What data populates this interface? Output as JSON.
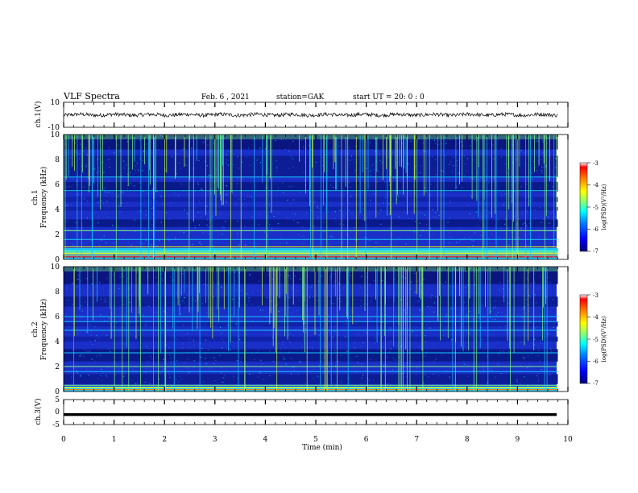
{
  "header": {
    "title": "VLF Spectra",
    "date": "Feb. 6 , 2021",
    "station": "station=GAK",
    "start": "start UT = 20: 0 : 0"
  },
  "chart_data": [
    {
      "type": "line",
      "panel": "ch1-waveform",
      "ylabel": "ch.1(V)",
      "ylim": [
        -10,
        10
      ],
      "yticks": [
        "10",
        "-10"
      ],
      "xlim": [
        0,
        10
      ],
      "approx_level": 0,
      "approx_noise_amplitude": 1.5
    },
    {
      "type": "heatmap",
      "panel": "ch1-spectrogram",
      "ylabel_line1": "ch.1",
      "ylabel_line2": "Frequency (kHz)",
      "ylim": [
        0,
        10
      ],
      "yticks": [
        "0",
        "2",
        "4",
        "6",
        "8",
        "10"
      ],
      "xlim": [
        0,
        9.85
      ],
      "colorbar": {
        "label": "log(PSD)(V²/Hz)",
        "min": -7,
        "max": -3,
        "ticks": [
          "-3",
          "-4",
          "-5",
          "-6",
          "-7"
        ]
      }
    },
    {
      "type": "heatmap",
      "panel": "ch2-spectrogram",
      "ylabel_line1": "ch.2",
      "ylabel_line2": "Frequency (kHz)",
      "ylim": [
        0,
        10
      ],
      "yticks": [
        "0",
        "2",
        "4",
        "6",
        "8",
        "10"
      ],
      "xlim": [
        0,
        9.85
      ],
      "colorbar": {
        "label": "log(PSD)(V²/Hz)",
        "min": -7,
        "max": -3,
        "ticks": [
          "-3",
          "-4",
          "-5",
          "-6",
          "-7"
        ]
      }
    },
    {
      "type": "line",
      "panel": "ch3-waveform",
      "ylabel": "ch.3(V)",
      "ylim": [
        -5,
        5
      ],
      "yticks": [
        "5",
        "0",
        "-5"
      ],
      "xlim": [
        0,
        10
      ],
      "approx_level": -1
    }
  ],
  "xaxis": {
    "label": "Time (min)",
    "ticks": [
      "0",
      "1",
      "2",
      "3",
      "4",
      "5",
      "6",
      "7",
      "8",
      "9",
      "10"
    ]
  },
  "colors": {
    "colormap": [
      "#00007f",
      "#0000ff",
      "#007fff",
      "#00ffff",
      "#7fff7f",
      "#ffff00",
      "#ff7f00",
      "#ff0000"
    ]
  }
}
